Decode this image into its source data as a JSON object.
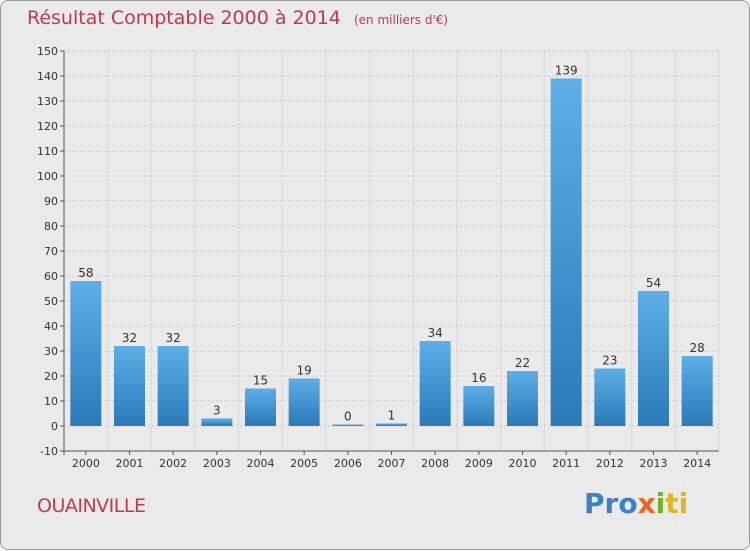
{
  "title": "Résultat Comptable 2000 à 2014",
  "subtitle": "(en milliers d'€)",
  "commune": "OUAINVILLE",
  "logo": {
    "p1": "Pro",
    "p2": "x",
    "p3": "i",
    "p4": "ti"
  },
  "colors": {
    "title": "#c0394f",
    "bar_top": "#5eaee8",
    "bar_bottom": "#2a7ab8",
    "grid": "#c8c8c8"
  },
  "chart_data": {
    "type": "bar",
    "categories": [
      "2000",
      "2001",
      "2002",
      "2003",
      "2004",
      "2005",
      "2006",
      "2007",
      "2008",
      "2009",
      "2010",
      "2011",
      "2012",
      "2013",
      "2014"
    ],
    "values": [
      58,
      32,
      32,
      3,
      15,
      19,
      0,
      1,
      34,
      16,
      22,
      139,
      23,
      54,
      28
    ],
    "data_labels": [
      "58",
      "32",
      "32",
      "3",
      "15",
      "19",
      "0",
      "1",
      "34",
      "16",
      "22",
      "139",
      "23",
      "54",
      "28"
    ],
    "yticks": [
      "-10",
      "0",
      "10",
      "20",
      "30",
      "40",
      "50",
      "60",
      "70",
      "80",
      "90",
      "100",
      "110",
      "120",
      "130",
      "140",
      "150"
    ],
    "ylim": [
      -10,
      150
    ],
    "grid": true
  }
}
